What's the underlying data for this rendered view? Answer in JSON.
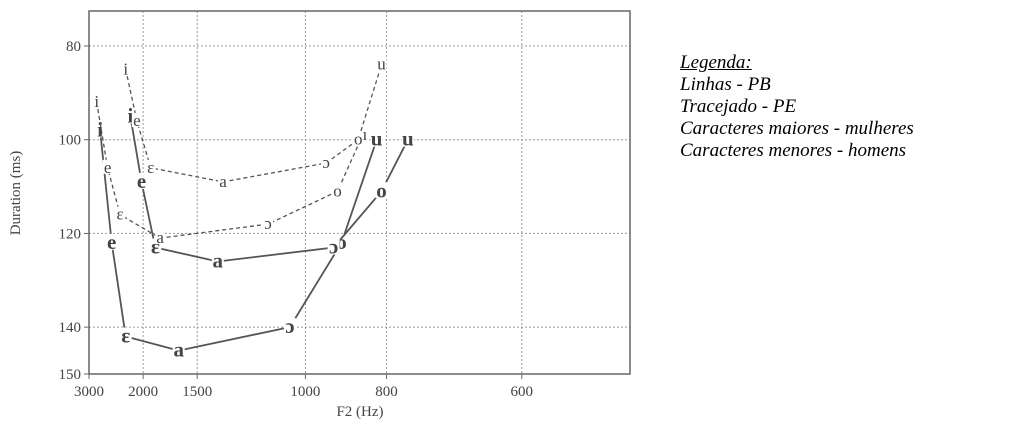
{
  "chart_data": {
    "type": "line",
    "xlabel": "F2 (Hz)",
    "ylabel": "Duration (ms)",
    "xlim": [
      3000,
      500
    ],
    "ylim": [
      80,
      150
    ],
    "x_ticks": [
      "3000",
      "2000",
      "1500",
      "1000",
      "800",
      "600"
    ],
    "y_ticks": [
      "80",
      "100",
      "120",
      "140",
      "150"
    ],
    "grid": true,
    "series": [
      {
        "style": "solid",
        "size": "large",
        "color": "#555555",
        "points": [
          {
            "label": "i",
            "x": 2720,
            "y": 98
          },
          {
            "label": "e",
            "x": 2480,
            "y": 122
          },
          {
            "label": "ɛ",
            "x": 2240,
            "y": 142
          },
          {
            "label": "a",
            "x": 1640,
            "y": 145
          },
          {
            "label": "ɔ",
            "x": 1050,
            "y": 140
          },
          {
            "label": "o",
            "x": 900,
            "y": 122
          },
          {
            "label": "u",
            "x": 820,
            "y": 100
          }
        ]
      },
      {
        "style": "solid",
        "size": "large",
        "color": "#555555",
        "points": [
          {
            "label": "i",
            "x": 2170,
            "y": 95
          },
          {
            "label": "e",
            "x": 2020,
            "y": 109
          },
          {
            "label": "ɛ",
            "x": 1860,
            "y": 123
          },
          {
            "label": "a",
            "x": 1370,
            "y": 126
          },
          {
            "label": "ɔ",
            "x": 920,
            "y": 123
          },
          {
            "label": "o",
            "x": 810,
            "y": 111
          },
          {
            "label": "u",
            "x": 760,
            "y": 100
          }
        ]
      },
      {
        "style": "dashed",
        "size": "small",
        "color": "#555555",
        "points": [
          {
            "label": "i",
            "x": 2800,
            "y": 92
          },
          {
            "label": "e",
            "x": 2560,
            "y": 106
          },
          {
            "label": "ɛ",
            "x": 2330,
            "y": 116
          },
          {
            "label": "a",
            "x": 1810,
            "y": 121
          },
          {
            "label": "ɔ",
            "x": 1130,
            "y": 118
          },
          {
            "label": "o",
            "x": 910,
            "y": 111
          },
          {
            "label": "u",
            "x": 850,
            "y": 99
          }
        ]
      },
      {
        "style": "dashed",
        "size": "small",
        "color": "#555555",
        "points": [
          {
            "label": "i",
            "x": 2240,
            "y": 85
          },
          {
            "label": "e",
            "x": 2080,
            "y": 96
          },
          {
            "label": "ɛ",
            "x": 1910,
            "y": 106
          },
          {
            "label": "a",
            "x": 1340,
            "y": 109
          },
          {
            "label": "ɔ",
            "x": 940,
            "y": 105
          },
          {
            "label": "o",
            "x": 860,
            "y": 100
          },
          {
            "label": "u",
            "x": 810,
            "y": 84
          }
        ]
      }
    ]
  },
  "legend": {
    "title": "Legenda:",
    "lines": [
      "Linhas - PB",
      "Tracejado - PE",
      "Caracteres maiores - mulheres",
      "Caracteres menores - homens"
    ]
  }
}
